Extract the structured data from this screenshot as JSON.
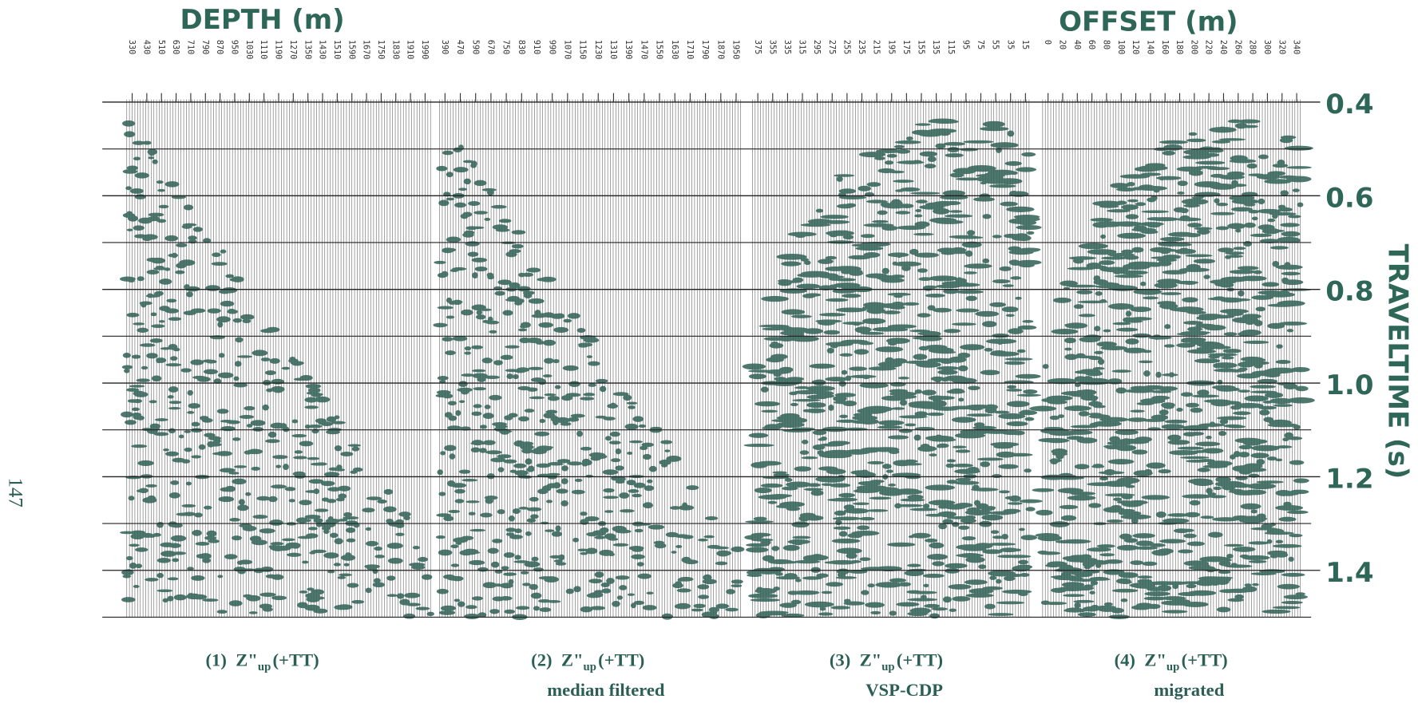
{
  "page_number": "147",
  "depth_axis": {
    "title": "DEPTH (m)",
    "panel_1_ticks": [
      330,
      430,
      510,
      630,
      710,
      790,
      870,
      950,
      1030,
      1110,
      1190,
      1270,
      1350,
      1430,
      1510,
      1590,
      1670,
      1750,
      1830,
      1910,
      1990
    ],
    "panel_2_ticks": [
      390,
      470,
      590,
      670,
      750,
      830,
      910,
      990,
      1070,
      1150,
      1230,
      1310,
      1390,
      1470,
      1550,
      1630,
      1710,
      1790,
      1870,
      1950
    ]
  },
  "offset_axis": {
    "title": "OFFSET (m)",
    "panel_3_ticks": [
      375,
      355,
      335,
      315,
      295,
      275,
      255,
      235,
      215,
      195,
      175,
      155,
      135,
      115,
      95,
      75,
      55,
      35,
      15
    ],
    "panel_4_ticks": [
      0,
      20,
      40,
      60,
      80,
      100,
      120,
      140,
      160,
      180,
      200,
      220,
      240,
      260,
      280,
      300,
      320,
      340
    ]
  },
  "time_axis": {
    "title": "TRAVELTIME (s)",
    "lim": [
      0.4,
      1.5
    ],
    "ticks": [
      0.4,
      0.6,
      0.8,
      {
        "value": 1,
        "label": "1.0"
      },
      1.2,
      1.4
    ]
  },
  "panels": [
    {
      "number": "(1)",
      "symbol": "Z\"",
      "subscript": "up",
      "suffix": "(+TT)"
    },
    {
      "number": "(2)",
      "symbol": "Z\"",
      "subscript": "up",
      "suffix": "(+TT)",
      "note": "median filtered"
    },
    {
      "number": "(3)",
      "symbol": "Z\"",
      "subscript": "up",
      "suffix": "(+TT)",
      "note": "VSP-CDP"
    },
    {
      "number": "(4)",
      "symbol": "Z\"",
      "subscript": "up",
      "suffix": "(+TT)",
      "note": "migrated"
    }
  ]
}
